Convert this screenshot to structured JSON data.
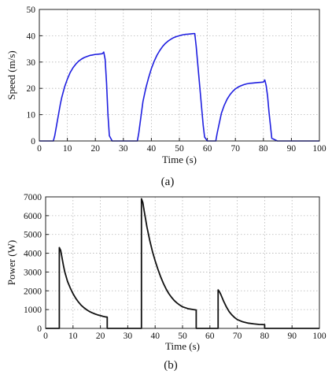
{
  "chart_data": [
    {
      "type": "line",
      "panel_label": "(a)",
      "xlabel": "Time (s)",
      "ylabel": "Speed (m/s)",
      "xlim": [
        0,
        100
      ],
      "ylim": [
        0,
        50
      ],
      "xticks": [
        0,
        10,
        20,
        30,
        40,
        50,
        60,
        70,
        80,
        90,
        100
      ],
      "yticks": [
        0,
        10,
        20,
        30,
        40,
        50
      ],
      "grid": true,
      "series": [
        {
          "color": "#1f1fe0",
          "x": [
            0,
            5,
            5.5,
            6,
            6.5,
            7,
            7.5,
            8,
            9,
            10,
            11,
            12,
            13,
            14,
            15,
            16,
            17,
            18,
            19,
            20,
            21,
            22,
            22.5,
            23,
            23.5,
            24,
            24.5,
            25,
            26,
            30,
            35,
            35.5,
            36,
            36.5,
            37,
            38,
            39,
            40,
            41,
            42,
            43,
            44,
            45,
            46,
            47,
            48,
            49,
            50,
            51,
            52,
            53,
            54,
            55,
            55.5,
            56,
            57,
            58,
            58.5,
            59,
            60,
            62,
            63,
            63.5,
            64,
            64.5,
            65,
            66,
            67,
            68,
            69,
            70,
            71,
            72,
            73,
            74,
            75,
            76,
            77,
            78,
            79,
            80,
            80.5,
            81,
            81.5,
            82,
            82.5,
            83,
            85,
            90,
            95,
            100
          ],
          "y": [
            0,
            0,
            2,
            5,
            8,
            11,
            14,
            16.5,
            20.5,
            23.5,
            26,
            27.8,
            29.2,
            30.3,
            31.1,
            31.7,
            32.1,
            32.5,
            32.7,
            32.9,
            33,
            33.1,
            33.2,
            33.8,
            31,
            22,
            10,
            2,
            0,
            0,
            0,
            3,
            7,
            11,
            15,
            20,
            24,
            27.5,
            30.3,
            32.6,
            34.4,
            35.9,
            37.1,
            38,
            38.7,
            39.3,
            39.7,
            40,
            40.3,
            40.5,
            40.6,
            40.7,
            40.8,
            40.8,
            36,
            24,
            12,
            6,
            1.5,
            0,
            0,
            0,
            3,
            5.5,
            8,
            10.5,
            13.5,
            15.8,
            17.5,
            18.8,
            19.8,
            20.5,
            21,
            21.4,
            21.7,
            21.9,
            22,
            22.1,
            22.2,
            22.3,
            22.4,
            23.2,
            21,
            17,
            11,
            6,
            1,
            0,
            0,
            0,
            0
          ]
        }
      ]
    },
    {
      "type": "line",
      "panel_label": "(b)",
      "xlabel": "Time (s)",
      "ylabel": "Power (W)",
      "xlim": [
        0,
        100
      ],
      "ylim": [
        0,
        7000
      ],
      "xticks": [
        0,
        10,
        20,
        30,
        40,
        50,
        60,
        70,
        80,
        90,
        100
      ],
      "yticks": [
        0,
        1000,
        2000,
        3000,
        4000,
        5000,
        6000,
        7000
      ],
      "grid": true,
      "series": [
        {
          "color": "#111111",
          "x": [
            0,
            5,
            5,
            5.5,
            6,
            6.5,
            7,
            8,
            9,
            10,
            11,
            12,
            13,
            14,
            15,
            16,
            17,
            18,
            19,
            20,
            21,
            22,
            22.5,
            22.5,
            35,
            35,
            35.5,
            36,
            37,
            38,
            39,
            40,
            41,
            42,
            43,
            44,
            45,
            46,
            47,
            48,
            49,
            50,
            52,
            54,
            55,
            55,
            63,
            63,
            63.5,
            64,
            65,
            66,
            67,
            68,
            69,
            70,
            72,
            74,
            76,
            78,
            80,
            80,
            100
          ],
          "y": [
            0,
            0,
            4300,
            4150,
            3750,
            3350,
            3000,
            2500,
            2150,
            1850,
            1600,
            1400,
            1230,
            1100,
            990,
            900,
            830,
            770,
            720,
            680,
            640,
            610,
            600,
            0,
            0,
            6900,
            6700,
            6250,
            5400,
            4700,
            4100,
            3600,
            3150,
            2750,
            2400,
            2100,
            1850,
            1650,
            1480,
            1350,
            1240,
            1150,
            1050,
            1000,
            980,
            0,
            0,
            2050,
            1950,
            1800,
            1450,
            1150,
            900,
            720,
            580,
            470,
            350,
            280,
            240,
            210,
            200,
            0,
            0
          ]
        }
      ]
    }
  ]
}
